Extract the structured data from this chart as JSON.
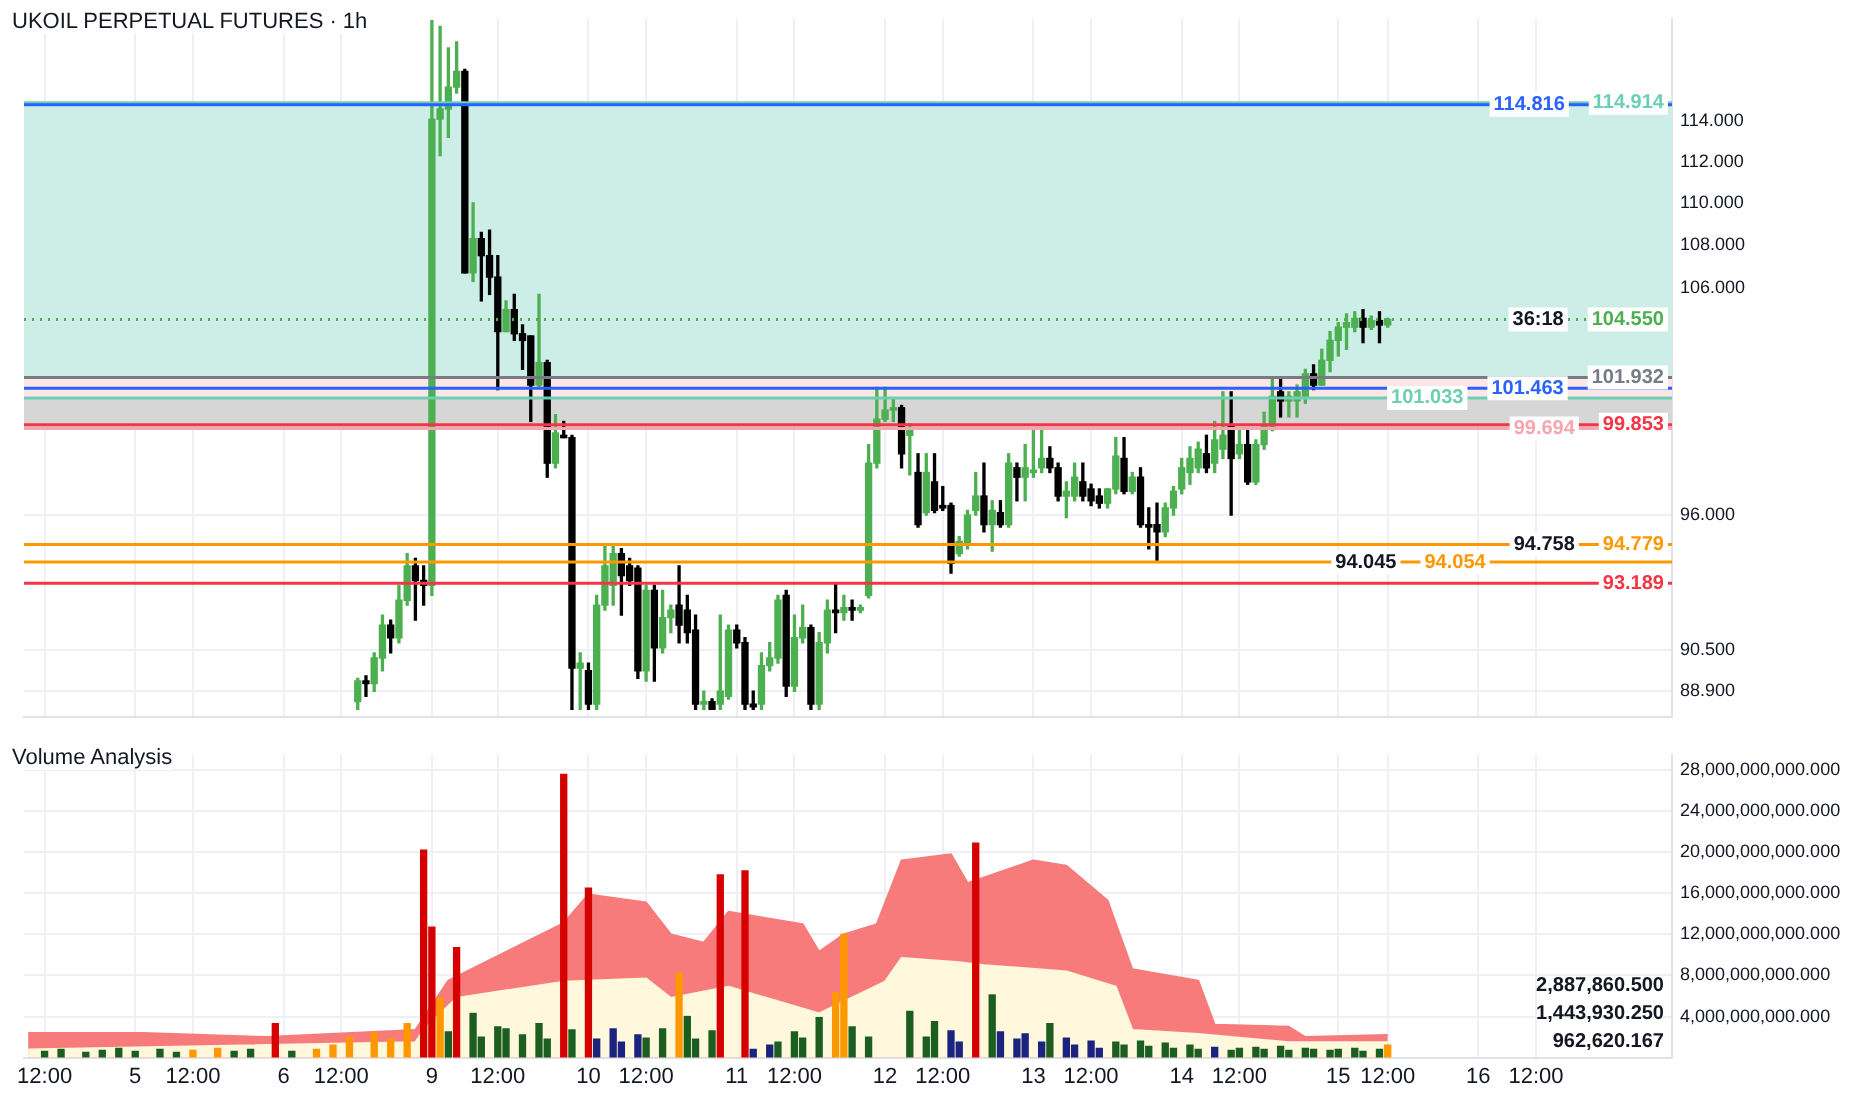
{
  "chart_data": [
    {
      "type": "candlestick",
      "title": "UKOIL PERPETUAL FUTURES · 1h",
      "log": true,
      "grid": true,
      "tick_labels": "y",
      "categories": [
        null,
        null,
        null,
        null,
        null,
        null,
        null,
        null,
        null,
        null,
        null,
        null,
        null,
        null,
        null,
        null,
        null,
        null,
        null,
        null,
        null,
        null,
        null,
        null,
        null,
        null,
        null,
        null,
        null,
        null,
        null,
        null,
        null,
        null,
        null,
        null,
        null,
        null,
        null,
        null,
        null,
        null,
        null,
        null,
        null,
        null,
        null,
        null,
        null,
        null,
        null,
        null,
        null,
        null,
        null,
        null,
        null,
        null,
        null,
        null,
        null,
        null,
        null,
        null,
        null,
        null,
        null,
        null,
        null,
        null,
        null,
        null,
        null,
        null,
        null,
        null,
        null,
        null,
        null,
        null,
        null,
        null,
        null,
        null,
        null,
        null,
        null,
        null,
        null,
        null,
        null,
        null,
        null,
        null,
        null,
        null,
        null,
        null,
        null,
        null,
        null,
        null,
        null,
        null,
        null,
        null,
        null,
        null,
        null,
        null,
        null,
        null,
        null,
        null,
        null,
        null,
        null,
        null,
        null,
        null,
        null,
        null,
        null,
        null,
        null,
        null,
        null,
        null,
        null,
        null,
        null,
        null,
        null,
        null,
        null,
        null,
        null,
        null,
        null,
        null,
        null,
        null,
        null,
        null,
        null,
        null,
        null,
        null,
        null,
        null,
        null,
        null,
        null,
        null,
        null,
        null,
        null,
        null,
        null,
        null,
        null,
        null,
        null,
        null,
        null,
        null,
        null,
        null,
        null,
        null,
        null,
        null,
        null,
        null,
        null,
        null,
        null,
        null,
        null,
        null,
        null,
        null,
        null,
        null,
        null,
        null,
        null,
        null,
        null,
        null,
        null,
        null,
        null,
        null,
        null,
        null,
        null,
        null,
        null,
        null
      ],
      "ohlc": [
        null,
        null,
        null,
        null,
        null,
        null,
        null,
        null,
        null,
        null,
        null,
        null,
        null,
        null,
        null,
        null,
        null,
        null,
        null,
        null,
        null,
        null,
        null,
        null,
        null,
        null,
        null,
        null,
        null,
        null,
        null,
        null,
        null,
        null,
        null,
        null,
        null,
        null,
        null,
        null,
        [
          88.5,
          89.4,
          88.2,
          89.3
        ],
        [
          89.3,
          89.5,
          88.7,
          89.2
        ],
        [
          89.2,
          90.4,
          88.9,
          90.2
        ],
        [
          90.2,
          91.9,
          89.7,
          91.5
        ],
        [
          91.5,
          91.7,
          90.4,
          91.0
        ],
        [
          91.0,
          93.1,
          90.8,
          92.5
        ],
        [
          92.5,
          94.4,
          92.3,
          93.9
        ],
        [
          93.9,
          94.2,
          91.7,
          93.3
        ],
        [
          93.3,
          93.9,
          92.3,
          93.1
        ],
        [
          93.1,
          119.1,
          92.7,
          114.1
        ],
        [
          114.1,
          118.8,
          112.3,
          114.6
        ],
        [
          114.6,
          117.7,
          113.2,
          115.7
        ],
        [
          115.7,
          118.0,
          115.4,
          116.5
        ],
        [
          116.5,
          116.6,
          106.7,
          106.7
        ],
        [
          106.7,
          110.0,
          106.3,
          108.3
        ],
        [
          108.3,
          108.6,
          105.4,
          107.5
        ],
        [
          107.5,
          108.7,
          105.7,
          106.5
        ],
        [
          106.5,
          107.5,
          101.4,
          104.0
        ],
        [
          104.0,
          105.4,
          104.0,
          105.0
        ],
        [
          105.0,
          105.7,
          103.6,
          103.9
        ],
        [
          103.9,
          104.3,
          102.3,
          103.6
        ],
        [
          103.8,
          103.8,
          100.0,
          101.6
        ],
        [
          101.6,
          105.7,
          101.5,
          102.6
        ],
        [
          102.6,
          102.7,
          97.6,
          98.2
        ],
        [
          98.2,
          100.3,
          98.0,
          99.5
        ],
        [
          99.4,
          100.0,
          99.3,
          99.3
        ],
        [
          99.3,
          99.4,
          88.2,
          89.8
        ],
        [
          89.8,
          90.4,
          88.2,
          90.0
        ],
        [
          89.7,
          90.0,
          88.2,
          88.4
        ],
        [
          88.4,
          92.7,
          88.2,
          92.3
        ],
        [
          92.3,
          94.7,
          92.1,
          93.9
        ],
        [
          93.1,
          94.8,
          92.3,
          94.4
        ],
        [
          94.4,
          94.6,
          91.9,
          93.5
        ],
        [
          93.9,
          94.2,
          93.1,
          93.3
        ],
        [
          93.8,
          93.9,
          89.4,
          89.7
        ],
        [
          89.7,
          93.1,
          89.3,
          92.9
        ],
        [
          92.9,
          93.1,
          89.3,
          90.6
        ],
        [
          90.6,
          92.9,
          90.4,
          91.8
        ],
        [
          91.8,
          92.3,
          91.2,
          92.1
        ],
        [
          92.3,
          93.9,
          90.8,
          91.5
        ],
        [
          92.1,
          92.7,
          90.8,
          91.2
        ],
        [
          91.3,
          91.9,
          88.2,
          88.4
        ],
        [
          88.4,
          88.9,
          88.2,
          88.5
        ],
        [
          88.5,
          88.6,
          88.2,
          88.2
        ],
        [
          88.4,
          91.9,
          88.2,
          88.9
        ],
        [
          88.7,
          91.5,
          88.6,
          91.3
        ],
        [
          91.3,
          91.5,
          90.6,
          90.8
        ],
        [
          90.8,
          91.0,
          88.2,
          88.4
        ],
        [
          88.4,
          88.9,
          88.2,
          88.3
        ],
        [
          88.4,
          90.4,
          88.2,
          89.9
        ],
        [
          89.9,
          90.8,
          89.7,
          90.2
        ],
        [
          90.2,
          92.7,
          90.0,
          92.5
        ],
        [
          92.7,
          92.9,
          88.7,
          89.1
        ],
        [
          89.1,
          91.9,
          88.9,
          91.0
        ],
        [
          91.0,
          92.3,
          90.8,
          91.4
        ],
        [
          91.4,
          91.5,
          88.2,
          88.4
        ],
        [
          88.4,
          91.2,
          88.2,
          90.8
        ],
        [
          90.8,
          92.5,
          90.4,
          92.1
        ],
        [
          92.1,
          93.2,
          91.2,
          92.0
        ],
        [
          92.0,
          92.7,
          91.7,
          92.2
        ],
        [
          92.2,
          92.5,
          91.7,
          92.1
        ],
        [
          92.1,
          92.3,
          92.0,
          92.2
        ],
        [
          92.7,
          99.0,
          92.6,
          98.2
        ],
        [
          98.2,
          101.5,
          98.0,
          100.1
        ],
        [
          100.1,
          101.5,
          100.0,
          100.5
        ],
        [
          100.5,
          101.0,
          100.0,
          100.6
        ],
        [
          100.6,
          100.7,
          98.0,
          98.6
        ],
        [
          99.4,
          99.9,
          97.7,
          99.7
        ],
        [
          97.8,
          98.6,
          95.5,
          95.6
        ],
        [
          96.1,
          98.6,
          96.0,
          97.8
        ],
        [
          97.4,
          98.6,
          96.1,
          96.2
        ],
        [
          96.4,
          97.2,
          96.2,
          96.3
        ],
        [
          96.4,
          96.5,
          93.6,
          94.0
        ],
        [
          94.4,
          95.1,
          94.3,
          94.9
        ],
        [
          94.8,
          96.2,
          94.6,
          96.0
        ],
        [
          96.2,
          97.8,
          96.0,
          96.8
        ],
        [
          96.8,
          98.2,
          95.3,
          95.6
        ],
        [
          95.6,
          96.6,
          94.5,
          96.2
        ],
        [
          96.1,
          96.6,
          95.5,
          95.6
        ],
        [
          95.6,
          98.6,
          95.5,
          98.2
        ],
        [
          98.0,
          98.2,
          96.6,
          97.6
        ],
        [
          97.6,
          99.0,
          96.6,
          98.0
        ],
        [
          97.8,
          99.7,
          97.6,
          97.9
        ],
        [
          98.0,
          99.7,
          97.8,
          98.4
        ],
        [
          98.4,
          98.9,
          97.8,
          98.0
        ],
        [
          98.0,
          98.2,
          96.6,
          96.8
        ],
        [
          96.8,
          97.4,
          95.9,
          97.0
        ],
        [
          96.8,
          98.2,
          96.6,
          97.6
        ],
        [
          97.4,
          98.2,
          96.6,
          96.8
        ],
        [
          97.1,
          97.3,
          96.4,
          96.6
        ],
        [
          96.8,
          97.1,
          96.3,
          96.5
        ],
        [
          96.5,
          97.1,
          96.3,
          97.1
        ],
        [
          97.1,
          99.3,
          96.9,
          98.5
        ],
        [
          98.4,
          99.3,
          96.9,
          97.0
        ],
        [
          97.0,
          97.8,
          96.9,
          97.6
        ],
        [
          97.6,
          98.0,
          95.5,
          95.6
        ],
        [
          95.6,
          96.3,
          94.6,
          95.5
        ],
        [
          95.6,
          96.5,
          94.1,
          95.3
        ],
        [
          95.3,
          96.5,
          95.1,
          96.3
        ],
        [
          96.3,
          97.2,
          96.0,
          97.0
        ],
        [
          97.1,
          98.4,
          96.9,
          98.0
        ],
        [
          97.8,
          98.9,
          97.3,
          98.4
        ],
        [
          98.0,
          99.1,
          97.8,
          98.8
        ],
        [
          98.6,
          99.4,
          97.8,
          98.0
        ],
        [
          98.2,
          100.0,
          97.8,
          99.2
        ],
        [
          98.8,
          101.3,
          98.4,
          99.4
        ],
        [
          99.8,
          101.3,
          96.0,
          98.4
        ],
        [
          98.6,
          99.7,
          98.4,
          99.0
        ],
        [
          99.0,
          99.6,
          97.3,
          97.4
        ],
        [
          97.4,
          99.2,
          97.3,
          99.0
        ],
        [
          99.0,
          100.4,
          98.8,
          99.8
        ],
        [
          99.8,
          101.9,
          99.6,
          101.1
        ],
        [
          101.3,
          101.9,
          100.2,
          100.9
        ],
        [
          100.9,
          101.3,
          100.2,
          101.1
        ],
        [
          100.9,
          101.6,
          100.2,
          101.3
        ],
        [
          101.1,
          102.3,
          100.8,
          102.1
        ],
        [
          102.1,
          102.5,
          101.4,
          101.6
        ],
        [
          101.6,
          103.2,
          101.6,
          102.7
        ],
        [
          102.7,
          104.0,
          102.2,
          103.6
        ],
        [
          103.6,
          104.4,
          102.9,
          104.2
        ],
        [
          104.2,
          104.8,
          103.2,
          104.4
        ],
        [
          104.2,
          104.9,
          104.0,
          104.6
        ],
        [
          104.6,
          105.0,
          103.5,
          104.2
        ],
        [
          104.2,
          104.7,
          104.1,
          104.5
        ],
        [
          104.5,
          104.9,
          103.5,
          104.3
        ],
        [
          104.3,
          104.6,
          104.2,
          104.55
        ],
        null,
        null,
        null,
        null,
        null,
        null,
        null,
        null,
        null,
        null,
        null,
        null,
        null,
        null,
        null,
        null,
        null,
        null,
        null,
        null,
        null,
        null,
        null,
        null,
        null,
        null,
        null,
        null,
        null,
        null,
        null,
        null,
        null,
        null
      ],
      "ylim": [
        87.9,
        119.2
      ],
      "yticks": [
        {
          "value": 114,
          "label": "114.000"
        },
        {
          "value": 112,
          "label": "112.000"
        },
        {
          "value": 110,
          "label": "110.000"
        },
        {
          "value": 108,
          "label": "108.000"
        },
        {
          "value": 106,
          "label": "106.000"
        },
        {
          "value": 96,
          "label": "96.000"
        },
        {
          "value": 90.5,
          "label": "90.500"
        },
        {
          "value": 88.9,
          "label": "88.900"
        }
      ],
      "bands": [
        {
          "axis": "y",
          "from": 101.932,
          "to": 114.914,
          "color": "#cdeee6"
        },
        {
          "axis": "y",
          "from": 99.694,
          "to": 101.932,
          "color": "#fde6e6"
        },
        {
          "axis": "y",
          "from": 99.694,
          "to": 101.033,
          "color": "#d6d6d6"
        }
      ],
      "ref_lines": [
        {
          "axis": "y",
          "value": 114.914,
          "label": "114.914",
          "color": "#6ccfb4"
        },
        {
          "axis": "y",
          "value": 114.816,
          "label": "114.816",
          "color": "#2962ff"
        },
        {
          "axis": "y",
          "value": 104.55,
          "label": "104.550",
          "color": "#4caf50",
          "line_style": "dotted"
        },
        {
          "axis": "y",
          "value": 101.932,
          "label": "101.932",
          "color": "#787b86"
        },
        {
          "axis": "y",
          "value": 101.463,
          "label": "101.463",
          "color": "#2962ff"
        },
        {
          "axis": "y",
          "value": 101.033,
          "label": "101.033",
          "color": "#6ccfb4"
        },
        {
          "axis": "y",
          "value": 99.853,
          "label": "99.853",
          "color": "#f23645"
        },
        {
          "axis": "y",
          "value": 99.694,
          "label": "99.694",
          "color": "#f7a5b0"
        },
        {
          "axis": "y",
          "value": 94.779,
          "label": "94.779",
          "color": "#ff9800"
        },
        {
          "axis": "y",
          "value": 94.054,
          "label": "94.054",
          "color": "#ff9800"
        },
        {
          "axis": "y",
          "value": 93.189,
          "label": "93.189",
          "color": "#f23645"
        }
      ],
      "annotations": [
        {
          "text": "36:18",
          "y": 104.55
        },
        {
          "text": "94.758",
          "y": 94.758
        },
        {
          "text": "94.045",
          "y": 94.045
        }
      ]
    },
    {
      "type": "bar",
      "title": "Volume Analysis",
      "grid": true,
      "categories": [
        null,
        null,
        "12:00",
        null,
        null,
        null,
        null,
        null,
        null,
        null,
        null,
        null,
        null,
        "5",
        null,
        null,
        null,
        null,
        null,
        null,
        "12:00",
        null,
        null,
        null,
        null,
        null,
        null,
        null,
        null,
        null,
        null,
        "6",
        null,
        null,
        null,
        null,
        null,
        null,
        "12:00",
        null,
        null,
        null,
        null,
        null,
        null,
        null,
        null,
        null,
        null,
        "9",
        null,
        null,
        null,
        null,
        null,
        null,
        null,
        "12:00",
        null,
        null,
        null,
        null,
        null,
        null,
        null,
        null,
        null,
        null,
        "10",
        null,
        null,
        null,
        null,
        null,
        null,
        "12:00",
        null,
        null,
        null,
        null,
        null,
        null,
        null,
        null,
        null,
        null,
        "11",
        null,
        null,
        null,
        null,
        null,
        null,
        "12:00",
        null,
        null,
        null,
        null,
        null,
        null,
        null,
        null,
        null,
        null,
        "12",
        null,
        null,
        null,
        null,
        null,
        null,
        "12:00",
        null,
        null,
        null,
        null,
        null,
        null,
        null,
        null,
        null,
        null,
        "13",
        null,
        null,
        null,
        null,
        null,
        null,
        "12:00",
        null,
        null,
        null,
        null,
        null,
        null,
        null,
        null,
        null,
        null,
        "14",
        null,
        null,
        null,
        null,
        null,
        null,
        "12:00",
        null,
        null,
        null,
        null,
        null,
        null,
        null,
        null,
        null,
        null,
        null,
        "15",
        null,
        null,
        null,
        null,
        null,
        "12:00",
        null,
        null,
        null,
        null,
        null,
        null,
        null,
        null,
        null,
        null,
        "16",
        null,
        null,
        null,
        null,
        null,
        null,
        "12:00",
        null,
        null,
        null,
        null,
        null,
        null,
        null,
        null,
        null,
        null,
        null,
        null,
        null,
        null,
        null,
        null
      ],
      "series": [
        {
          "type": "area",
          "color": "#f77b7b",
          "values": [
            2400000000.0,
            null,
            null,
            null,
            null,
            null,
            null,
            null,
            null,
            null,
            null,
            null,
            null,
            null,
            2400000000.0,
            null,
            null,
            null,
            null,
            null,
            null,
            null,
            null,
            null,
            null,
            null,
            null,
            null,
            null,
            2000000000.0,
            null,
            null,
            null,
            null,
            null,
            null,
            null,
            null,
            null,
            null,
            null,
            null,
            null,
            null,
            null,
            null,
            null,
            2700000000.0,
            null,
            null,
            null,
            7500000000.0,
            null,
            null,
            null,
            null,
            null,
            null,
            null,
            null,
            null,
            null,
            null,
            null,
            null,
            13100000000.0,
            null,
            null,
            15900000000.0,
            null,
            null,
            null,
            null,
            null,
            null,
            15100000000.0,
            null,
            null,
            12000000000.0,
            null,
            null,
            null,
            11200000000.0,
            null,
            null,
            14200000000.0,
            null,
            null,
            null,
            null,
            null,
            null,
            null,
            null,
            13000000000.0,
            null,
            10300000000.0,
            null,
            null,
            12000000000.0,
            null,
            null,
            null,
            13000000000.0,
            null,
            null,
            19200000000.0,
            null,
            null,
            null,
            null,
            null,
            19800000000.0,
            null,
            17000000000.0,
            null,
            null,
            null,
            null,
            null,
            null,
            null,
            19200000000.0,
            null,
            null,
            null,
            18700000000.0,
            null,
            null,
            null,
            null,
            15300000000.0,
            null,
            null,
            8600000000.0,
            null,
            null,
            null,
            null,
            null,
            null,
            null,
            7500000000.0,
            null,
            3200000000.0,
            null,
            null,
            null,
            null,
            null,
            null,
            null,
            null,
            3000000000.0,
            null,
            2000000000.0,
            null,
            null,
            null,
            null,
            null,
            null,
            null,
            null,
            null,
            2200000000.0,
            null,
            null,
            null,
            null,
            null,
            null,
            null,
            null,
            null,
            null,
            null,
            null,
            null,
            null,
            null,
            null,
            null,
            null,
            null,
            null,
            null,
            null,
            null,
            null,
            null,
            null,
            null,
            null,
            null,
            null,
            null,
            null,
            null,
            null
          ]
        },
        {
          "type": "area",
          "color": "#fff8dc",
          "values": [
            800000000.0,
            null,
            null,
            null,
            null,
            null,
            null,
            null,
            null,
            null,
            null,
            null,
            null,
            null,
            null,
            null,
            null,
            null,
            null,
            null,
            null,
            null,
            null,
            null,
            null,
            null,
            null,
            null,
            null,
            null,
            null,
            null,
            null,
            null,
            null,
            null,
            null,
            null,
            null,
            null,
            null,
            null,
            null,
            null,
            null,
            null,
            null,
            1500000000.0,
            2700000000.0,
            null,
            null,
            null,
            5800000000.0,
            null,
            null,
            null,
            null,
            null,
            null,
            null,
            null,
            null,
            null,
            null,
            null,
            7400000000.0,
            null,
            null,
            null,
            null,
            null,
            null,
            null,
            null,
            null,
            7700000000.0,
            null,
            null,
            5800000000.0,
            null,
            null,
            null,
            null,
            null,
            null,
            6900000000.0,
            null,
            null,
            null,
            null,
            null,
            null,
            null,
            null,
            null,
            null,
            4300000000.0,
            null,
            null,
            null,
            null,
            null,
            null,
            null,
            7400000000.0,
            null,
            9700000000.0,
            null,
            null,
            null,
            null,
            null,
            null,
            9300000000.0,
            null,
            null,
            9000000000.0,
            null,
            null,
            null,
            null,
            null,
            null,
            null,
            null,
            null,
            8400000000.0,
            null,
            null,
            null,
            null,
            null,
            6900000000.0,
            null,
            2700000000.0,
            null,
            null,
            null,
            null,
            null,
            null,
            null,
            2300000000.0,
            null,
            null,
            null,
            null,
            null,
            null,
            null,
            null,
            null,
            null,
            1500000000.0,
            null,
            null,
            null,
            null,
            null,
            null,
            null,
            null,
            null,
            null,
            null,
            1500000000.0,
            null,
            null,
            null,
            null,
            null,
            null,
            null,
            null,
            null,
            null,
            null,
            null,
            null,
            null,
            null,
            null,
            null,
            null,
            null,
            null,
            null,
            null,
            null,
            null,
            null,
            null,
            null,
            null,
            null,
            null,
            null,
            null,
            null,
            null
          ]
        },
        {
          "values": [
            null,
            null,
            600000000.0,
            null,
            800000000.0,
            null,
            null,
            500000000.0,
            null,
            700000000.0,
            null,
            900000000.0,
            null,
            600000000.0,
            null,
            null,
            800000000.0,
            null,
            500000000.0,
            null,
            700000000.0,
            null,
            null,
            900000000.0,
            null,
            600000000.0,
            null,
            800000000.0,
            null,
            null,
            3300000000.0,
            null,
            600000000.0,
            null,
            null,
            800000000.0,
            null,
            1200000000.0,
            null,
            2000000000.0,
            null,
            null,
            2400000000.0,
            null,
            1800000000.0,
            null,
            3300000000.0,
            null,
            20200000000.0,
            12700000000.0,
            5800000000.0,
            2500000000.0,
            10700000000.0,
            null,
            4300000000.0,
            2000000000.0,
            null,
            3000000000.0,
            2800000000.0,
            null,
            2200000000.0,
            null,
            3300000000.0,
            1800000000.0,
            null,
            27600000000.0,
            2700000000.0,
            null,
            16500000000.0,
            1800000000.0,
            null,
            2800000000.0,
            1500000000.0,
            null,
            2200000000.0,
            1900000000.0,
            null,
            2800000000.0,
            null,
            8200000000.0,
            4000000000.0,
            1800000000.0,
            null,
            2600000000.0,
            17800000000.0,
            null,
            null,
            18200000000.0,
            800000000.0,
            null,
            1200000000.0,
            1500000000.0,
            null,
            2500000000.0,
            1900000000.0,
            null,
            3900000000.0,
            null,
            6300000000.0,
            12000000000.0,
            3000000000.0,
            null,
            2000000000.0,
            null,
            null,
            null,
            null,
            4500000000.0,
            null,
            2000000000.0,
            3500000000.0,
            null,
            2600000000.0,
            1500000000.0,
            null,
            20900000000.0,
            null,
            6100000000.0,
            2500000000.0,
            null,
            1800000000.0,
            2300000000.0,
            null,
            1500000000.0,
            3300000000.0,
            null,
            1900000000.0,
            1200000000.0,
            null,
            1600000000.0,
            900000000.0,
            null,
            1500000000.0,
            1200000000.0,
            null,
            1600000000.0,
            1100000000.0,
            null,
            1400000000.0,
            900000000.0,
            null,
            1200000000.0,
            800000000.0,
            null,
            1000000000.0,
            null,
            700000000.0,
            900000000.0,
            null,
            1000000000.0,
            800000000.0,
            null,
            1100000000.0,
            700000000.0,
            null,
            900000000.0,
            800000000.0,
            null,
            700000000.0,
            800000000.0,
            null,
            900000000.0,
            600000000.0,
            null,
            800000000.0,
            1200000000.0,
            null,
            null,
            null,
            null,
            null,
            null,
            null,
            null,
            null,
            null,
            null,
            null,
            null,
            null,
            null,
            null,
            null,
            null,
            null,
            null,
            null,
            null,
            null,
            null,
            null,
            null,
            null,
            null,
            null,
            null,
            null,
            null,
            null,
            null
          ],
          "colors": [
            null,
            null,
            "#1b5e20",
            null,
            "#1b5e20",
            null,
            null,
            "#1b5e20",
            null,
            "#1b5e20",
            null,
            "#1b5e20",
            null,
            "#1b5e20",
            null,
            null,
            "#1b5e20",
            null,
            "#1b5e20",
            null,
            "#ff9800",
            null,
            null,
            "#ff9800",
            null,
            "#1b5e20",
            null,
            "#1b5e20",
            null,
            null,
            "#d50000",
            null,
            "#1b5e20",
            null,
            null,
            "#ff9800",
            null,
            "#ff9800",
            null,
            "#ff9800",
            null,
            null,
            "#ff9800",
            null,
            "#ff9800",
            null,
            "#ff9800",
            null,
            "#d50000",
            "#d50000",
            "#ff9800",
            "#1b5e20",
            "#d50000",
            null,
            "#1b5e20",
            "#1b5e20",
            null,
            "#1b5e20",
            "#1b5e20",
            null,
            "#1b5e20",
            null,
            "#1b5e20",
            "#1b5e20",
            null,
            "#d50000",
            "#1b5e20",
            null,
            "#d50000",
            "#1a237e",
            null,
            "#1a237e",
            "#1a237e",
            null,
            "#1a237e",
            "#1b5e20",
            null,
            "#1b5e20",
            null,
            "#ff9800",
            "#1b5e20",
            "#1b5e20",
            null,
            "#1b5e20",
            "#d50000",
            null,
            null,
            "#d50000",
            "#1a237e",
            null,
            "#1a237e",
            "#1b5e20",
            null,
            "#1b5e20",
            "#1b5e20",
            null,
            "#1b5e20",
            null,
            "#ff9800",
            "#ff9800",
            "#1b5e20",
            null,
            "#1b5e20",
            null,
            "#d50000",
            null,
            "#d50000",
            "#1b5e20",
            null,
            "#1b5e20",
            "#1b5e20",
            null,
            "#1a237e",
            "#1a237e",
            null,
            "#d50000",
            null,
            "#1b5e20",
            "#1a237e",
            null,
            "#1a237e",
            "#1a237e",
            null,
            "#1a237e",
            "#1b5e20",
            null,
            "#1a237e",
            "#1a237e",
            null,
            "#1a237e",
            "#1a237e",
            null,
            "#1b5e20",
            "#1b5e20",
            null,
            "#1b5e20",
            "#1b5e20",
            null,
            "#1b5e20",
            "#1b5e20",
            null,
            "#1b5e20",
            "#1b5e20",
            null,
            "#1a237e",
            null,
            "#1b5e20",
            "#1b5e20",
            null,
            "#1b5e20",
            "#1b5e20",
            null,
            "#1b5e20",
            "#1b5e20",
            null,
            "#1b5e20",
            "#1b5e20",
            null,
            "#1b5e20",
            "#1b5e20",
            null,
            "#1b5e20",
            "#1b5e20",
            null,
            "#1b5e20",
            "#ff9800",
            null,
            null,
            null,
            null,
            null,
            null,
            null,
            null,
            null,
            null,
            null,
            null,
            null,
            null,
            null,
            null,
            null,
            null,
            null,
            null,
            null,
            null,
            null,
            null,
            null,
            null,
            null,
            null,
            null,
            null,
            null,
            null,
            null,
            null
          ]
        }
      ],
      "ylim": [
        0,
        29500000000.0
      ],
      "yticks": [
        {
          "value": 4000000000.0,
          "label": "4,000,000,000.000"
        },
        {
          "value": 8000000000.0,
          "label": "8,000,000,000.000"
        },
        {
          "value": 12000000000.0,
          "label": "12,000,000,000.000"
        },
        {
          "value": 16000000000.0,
          "label": "16,000,000,000.000"
        },
        {
          "value": 20000000000.0,
          "label": "20,000,000,000.000"
        },
        {
          "value": 24000000000.0,
          "label": "24,000,000,000.000"
        },
        {
          "value": 28000000000.0,
          "label": "28,000,000,000.000"
        }
      ],
      "annotations": [
        "2,887,860.500",
        "1,443,930.250",
        "962,620.167"
      ]
    }
  ]
}
